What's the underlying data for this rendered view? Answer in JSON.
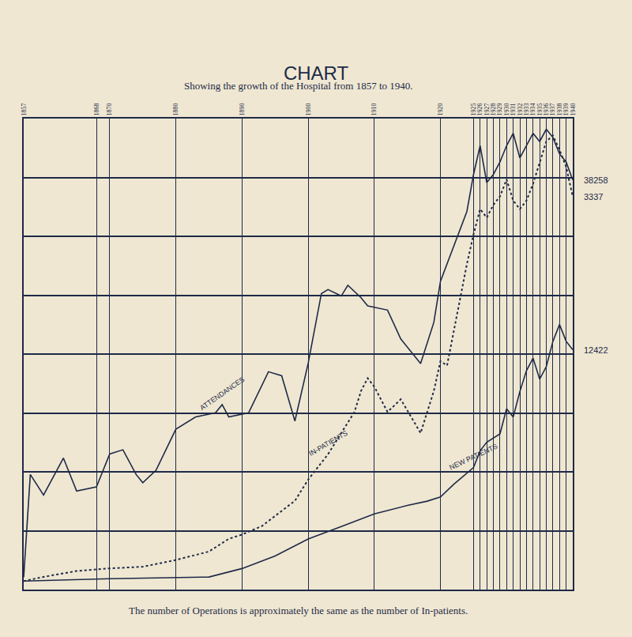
{
  "chart_data": {
    "type": "line",
    "title": "CHART",
    "subtitle": "Showing the growth of the Hospital from 1857 to 1940.",
    "note": "The number of Operations is approximately the same as the number of In-patients.",
    "xlim": [
      1857,
      1940
    ],
    "xticks": [
      1857,
      1868,
      1870,
      1880,
      1890,
      1900,
      1910,
      1920,
      1925,
      1926,
      1927,
      1928,
      1929,
      1930,
      1931,
      1932,
      1933,
      1934,
      1935,
      1936,
      1937,
      1938,
      1939,
      1940
    ],
    "ylim": [
      0,
      44000
    ],
    "yticks": [
      0,
      5500,
      11000,
      16500,
      22000,
      27500,
      33000,
      38500,
      44000
    ],
    "y2lim": [
      0,
      4000
    ],
    "y3lim": [
      0,
      24400
    ],
    "grid": true,
    "tick_labels": "x",
    "series": [
      {
        "name": "ATTENDANCES",
        "color": "#1e2a48",
        "line_style": "solid",
        "axis": "y",
        "x": [
          1857,
          1858,
          1860,
          1863,
          1865,
          1868,
          1870,
          1872,
          1874,
          1875,
          1877,
          1880,
          1883,
          1886,
          1887,
          1888,
          1891,
          1894,
          1896,
          1898,
          1900,
          1902,
          1903,
          1905,
          1906,
          1908,
          1909,
          1912,
          1914,
          1917,
          1919,
          1920,
          1924,
          1925,
          1926,
          1927,
          1928,
          1929,
          1930,
          1931,
          1932,
          1933,
          1934,
          1935,
          1936,
          1937,
          1938,
          1939,
          1940
        ],
        "values": [
          1150,
          10750,
          8830,
          12290,
          9200,
          9600,
          12670,
          13060,
          10750,
          9980,
          11140,
          14980,
          16130,
          16510,
          17280,
          16130,
          16510,
          20350,
          19970,
          15740,
          21120,
          27650,
          28030,
          27420,
          28420,
          27260,
          26500,
          26110,
          23420,
          21120,
          24960,
          28800,
          35330,
          38780,
          41470,
          38020,
          38780,
          39940,
          41470,
          42620,
          40320,
          41470,
          42620,
          41860,
          43000,
          42240,
          40700,
          39940,
          38258
        ],
        "value_labels": [
          null,
          null,
          null,
          null,
          null,
          null,
          null,
          null,
          null,
          null,
          null,
          null,
          null,
          null,
          null,
          null,
          null,
          null,
          null,
          null,
          null,
          null,
          null,
          null,
          null,
          null,
          null,
          null,
          null,
          null,
          null,
          null,
          null,
          null,
          null,
          null,
          null,
          null,
          null,
          null,
          null,
          null,
          null,
          null,
          null,
          null,
          null,
          null,
          "38258"
        ]
      },
      {
        "name": "IN-PATIENTS",
        "color": "#1e2a48",
        "line_style": "dotted",
        "axis": "y2",
        "x": [
          1857,
          1860,
          1865,
          1870,
          1875,
          1880,
          1885,
          1888,
          1890,
          1893,
          1896,
          1898,
          1900,
          1903,
          1905,
          1907,
          1908,
          1909,
          1910,
          1912,
          1914,
          1917,
          1919,
          1920,
          1921,
          1923,
          1924,
          1925,
          1926,
          1927,
          1928,
          1929,
          1930,
          1931,
          1932,
          1933,
          1934,
          1935,
          1936,
          1937,
          1938,
          1939,
          1940
        ],
        "values": [
          72,
          108,
          158,
          180,
          194,
          251,
          323,
          431,
          467,
          539,
          668,
          754,
          933,
          1149,
          1329,
          1508,
          1687,
          1795,
          1723,
          1508,
          1616,
          1329,
          1687,
          1939,
          1903,
          2477,
          2764,
          3016,
          3231,
          3159,
          3267,
          3339,
          3482,
          3303,
          3231,
          3303,
          3446,
          3626,
          3805,
          3856,
          3734,
          3590,
          3337
        ],
        "value_labels": [
          null,
          null,
          null,
          null,
          null,
          null,
          null,
          null,
          null,
          null,
          null,
          null,
          null,
          null,
          null,
          null,
          null,
          null,
          null,
          null,
          null,
          null,
          null,
          null,
          null,
          null,
          null,
          null,
          null,
          null,
          null,
          null,
          null,
          null,
          null,
          null,
          null,
          null,
          null,
          null,
          null,
          null,
          "3337"
        ]
      },
      {
        "name": "NEW PATIENTS",
        "color": "#1e2a48",
        "line_style": "solid",
        "axis": "y3",
        "x": [
          1857,
          1870,
          1885,
          1890,
          1895,
          1900,
          1905,
          1910,
          1915,
          1918,
          1920,
          1922,
          1925,
          1926,
          1927,
          1928,
          1929,
          1930,
          1931,
          1932,
          1933,
          1934,
          1935,
          1936,
          1937,
          1938,
          1939,
          1940
        ],
        "values": [
          440,
          560,
          650,
          1090,
          1740,
          2620,
          3270,
          3920,
          4360,
          4580,
          4800,
          5450,
          6320,
          7190,
          7630,
          7850,
          8070,
          9370,
          8940,
          10250,
          11340,
          11990,
          10900,
          11550,
          12860,
          13730,
          12860,
          12422
        ],
        "value_labels": [
          null,
          null,
          null,
          null,
          null,
          null,
          null,
          null,
          null,
          null,
          null,
          null,
          null,
          null,
          null,
          null,
          null,
          null,
          null,
          null,
          null,
          null,
          null,
          null,
          null,
          null,
          null,
          "12422"
        ]
      }
    ]
  }
}
